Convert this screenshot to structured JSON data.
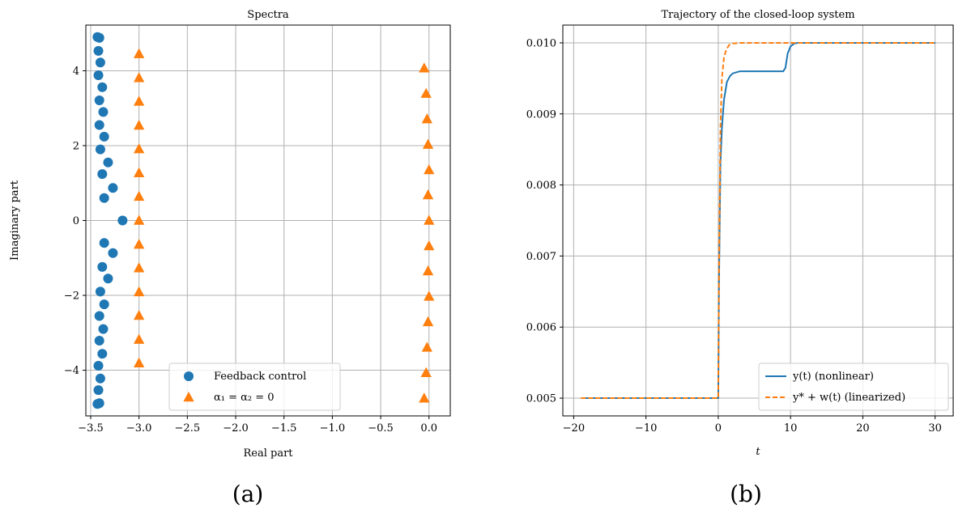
{
  "chart_data": [
    {
      "type": "scatter",
      "title": "Spectra",
      "xlabel": "Real part",
      "ylabel": "Imaginary part",
      "xlim": [
        -3.55,
        0.22
      ],
      "ylim": [
        -5.22,
        5.22
      ],
      "xticks": [
        -3.5,
        -3.0,
        -2.5,
        -2.0,
        -1.5,
        -1.0,
        -0.5,
        0.0
      ],
      "xtick_labels": [
        "−3.5",
        "−3.0",
        "−2.5",
        "−2.0",
        "−1.5",
        "−1.0",
        "−0.5",
        "0.0"
      ],
      "yticks": [
        -4,
        -2,
        0,
        2,
        4
      ],
      "ytick_labels": [
        "−4",
        "−2",
        "0",
        "2",
        "4"
      ],
      "grid": true,
      "legend_position": "lower center",
      "panel_label": "(a)",
      "series": [
        {
          "name": "Feedback control",
          "marker": "circle",
          "color": "#1f77b4",
          "x": [
            -3.17,
            -3.27,
            -3.36,
            -3.38,
            -3.32,
            -3.4,
            -3.36,
            -3.41,
            -3.37,
            -3.41,
            -3.38,
            -3.42,
            -3.4,
            -3.42,
            -3.41,
            -3.43,
            -3.27,
            -3.36,
            -3.38,
            -3.32,
            -3.4,
            -3.36,
            -3.41,
            -3.37,
            -3.41,
            -3.38,
            -3.42,
            -3.4,
            -3.42,
            -3.41,
            -3.43
          ],
          "y": [
            0.0,
            0.87,
            0.6,
            1.24,
            1.55,
            1.9,
            2.24,
            2.55,
            2.9,
            3.21,
            3.56,
            3.88,
            4.22,
            4.53,
            4.88,
            4.9,
            -0.87,
            -0.6,
            -1.24,
            -1.55,
            -1.9,
            -2.24,
            -2.55,
            -2.9,
            -3.21,
            -3.56,
            -3.88,
            -4.22,
            -4.53,
            -4.88,
            -4.9
          ]
        },
        {
          "name": "α₁ = α₂ = 0",
          "marker": "triangle",
          "color": "#ff7f0e",
          "x": [
            -3.0,
            -3.0,
            -3.0,
            -3.0,
            -3.0,
            -3.0,
            -3.0,
            -3.0,
            -3.0,
            -3.0,
            -3.0,
            -3.0,
            -3.0,
            -3.0,
            0.0,
            -0.01,
            0.0,
            -0.01,
            -0.02,
            -0.03,
            -0.05,
            0.0,
            -0.01,
            0.0,
            -0.01,
            -0.02,
            -0.03,
            -0.05
          ],
          "y": [
            0.0,
            0.64,
            1.27,
            1.91,
            2.54,
            3.18,
            3.81,
            4.45,
            -0.64,
            -1.27,
            -1.91,
            -2.54,
            -3.18,
            -3.81,
            0.0,
            0.68,
            1.35,
            2.03,
            2.71,
            3.39,
            4.07,
            -0.68,
            -1.35,
            -2.03,
            -2.71,
            -3.39,
            -4.07,
            -4.75
          ]
        }
      ]
    },
    {
      "type": "line",
      "title": "Trajectory of the closed-loop system",
      "xlabel": "t",
      "ylabel": "",
      "xlim": [
        -21.5,
        32.5
      ],
      "ylim": [
        0.00475,
        0.01025
      ],
      "xticks": [
        -20,
        -10,
        0,
        10,
        20,
        30
      ],
      "xtick_labels": [
        "−20",
        "−10",
        "0",
        "10",
        "20",
        "30"
      ],
      "yticks": [
        0.005,
        0.006,
        0.007,
        0.008,
        0.009,
        0.01
      ],
      "ytick_labels": [
        "0.005",
        "0.006",
        "0.007",
        "0.008",
        "0.009",
        "0.010"
      ],
      "grid": true,
      "legend_position": "lower right",
      "panel_label": "(b)",
      "series": [
        {
          "name": "y(t) (nonlinear)",
          "style": "solid",
          "color": "#1f77b4",
          "x": [
            -19,
            0,
            0.1,
            0.3,
            0.5,
            0.8,
            1.2,
            1.6,
            2.0,
            3.0,
            5.0,
            9.0,
            9.3,
            9.6,
            10.0,
            10.5,
            11.0,
            12.0,
            20.0,
            30.0
          ],
          "y": [
            0.005,
            0.005,
            0.0066,
            0.0083,
            0.0088,
            0.0092,
            0.00945,
            0.00953,
            0.00957,
            0.0096,
            0.0096,
            0.0096,
            0.00965,
            0.00985,
            0.00995,
            0.00999,
            0.01,
            0.01,
            0.01,
            0.01
          ]
        },
        {
          "name": "y* + w(t) (linearized)",
          "style": "dashed",
          "color": "#ff7f0e",
          "x": [
            -19,
            0,
            0.1,
            0.3,
            0.5,
            0.8,
            1.1,
            1.5,
            2.0,
            3.0,
            10.0,
            20.0,
            30.0
          ],
          "y": [
            0.005,
            0.005,
            0.0068,
            0.0088,
            0.0095,
            0.0098,
            0.0099,
            0.00997,
            0.00999,
            0.01,
            0.01,
            0.01,
            0.01
          ]
        }
      ]
    }
  ],
  "legend": {
    "a_items": [
      "Feedback control",
      "α₁ = α₂ = 0"
    ],
    "b_items": [
      "y(t) (nonlinear)",
      "y* + w(t) (linearized)"
    ]
  }
}
